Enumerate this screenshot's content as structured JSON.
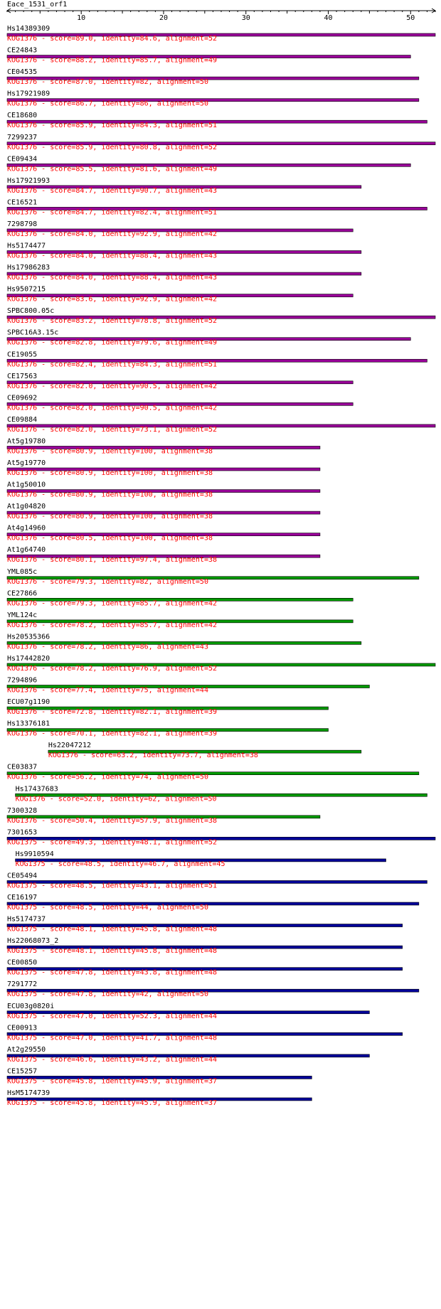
{
  "query": "Eace_1531_orf1",
  "axis": {
    "min": 1,
    "max": 53,
    "ticks": [
      10,
      20,
      30,
      40,
      50
    ]
  },
  "colors": {
    "KOG1376": "#990099",
    "KOG1376_low": "#009900",
    "KOG1375": "#000099",
    "info": "#ff0000",
    "axis": "#000000"
  },
  "hits": [
    {
      "name": "Hs14389309",
      "start": 1,
      "end": 53,
      "color": "#990099",
      "info": "KOG1376 - score=89.0, identity=84.6, alignment=52"
    },
    {
      "name": "CE24843",
      "start": 1,
      "end": 50,
      "color": "#990099",
      "info": "KOG1376 - score=88.2, identity=85.7, alignment=49"
    },
    {
      "name": "CE04535",
      "start": 1,
      "end": 51,
      "color": "#990099",
      "info": "KOG1376 - score=87.0, identity=82, alignment=50"
    },
    {
      "name": "Hs17921989",
      "start": 1,
      "end": 51,
      "color": "#990099",
      "info": "KOG1376 - score=86.7, identity=86, alignment=50"
    },
    {
      "name": "CE18680",
      "start": 1,
      "end": 52,
      "color": "#990099",
      "info": "KOG1376 - score=85.9, identity=84.3, alignment=51"
    },
    {
      "name": "7299237",
      "start": 1,
      "end": 53,
      "color": "#990099",
      "info": "KOG1376 - score=85.9, identity=80.8, alignment=52"
    },
    {
      "name": "CE09434",
      "start": 1,
      "end": 50,
      "color": "#990099",
      "info": "KOG1376 - score=85.5, identity=81.6, alignment=49"
    },
    {
      "name": "Hs17921993",
      "start": 1,
      "end": 44,
      "color": "#990099",
      "info": "KOG1376 - score=84.7, identity=90.7, alignment=43"
    },
    {
      "name": "CE16521",
      "start": 1,
      "end": 52,
      "color": "#990099",
      "info": "KOG1376 - score=84.7, identity=82.4, alignment=51"
    },
    {
      "name": "7298798",
      "start": 1,
      "end": 43,
      "color": "#990099",
      "info": "KOG1376 - score=84.0, identity=92.9, alignment=42"
    },
    {
      "name": "Hs5174477",
      "start": 1,
      "end": 44,
      "color": "#990099",
      "info": "KOG1376 - score=84.0, identity=88.4, alignment=43"
    },
    {
      "name": "Hs17986283",
      "start": 1,
      "end": 44,
      "color": "#990099",
      "info": "KOG1376 - score=84.0, identity=88.4, alignment=43"
    },
    {
      "name": "Hs9507215",
      "start": 1,
      "end": 43,
      "color": "#990099",
      "info": "KOG1376 - score=83.6, identity=92.9, alignment=42"
    },
    {
      "name": "SPBC800.05c",
      "start": 1,
      "end": 53,
      "color": "#990099",
      "info": "KOG1376 - score=83.2, identity=78.8, alignment=52"
    },
    {
      "name": "SPBC16A3.15c",
      "start": 1,
      "end": 50,
      "color": "#990099",
      "info": "KOG1376 - score=82.8, identity=79.6, alignment=49"
    },
    {
      "name": "CE19055",
      "start": 1,
      "end": 52,
      "color": "#990099",
      "info": "KOG1376 - score=82.4, identity=84.3, alignment=51"
    },
    {
      "name": "CE17563",
      "start": 1,
      "end": 43,
      "color": "#990099",
      "info": "KOG1376 - score=82.0, identity=90.5, alignment=42"
    },
    {
      "name": "CE09692",
      "start": 1,
      "end": 43,
      "color": "#990099",
      "info": "KOG1376 - score=82.0, identity=90.5, alignment=42"
    },
    {
      "name": "CE09884",
      "start": 1,
      "end": 53,
      "color": "#990099",
      "info": "KOG1376 - score=82.0, identity=73.1, alignment=52"
    },
    {
      "name": "At5g19780",
      "start": 1,
      "end": 39,
      "color": "#990099",
      "info": "KOG1376 - score=80.9, identity=100, alignment=38"
    },
    {
      "name": "At5g19770",
      "start": 1,
      "end": 39,
      "color": "#990099",
      "info": "KOG1376 - score=80.9, identity=100, alignment=38"
    },
    {
      "name": "At1g50010",
      "start": 1,
      "end": 39,
      "color": "#990099",
      "info": "KOG1376 - score=80.9, identity=100, alignment=38"
    },
    {
      "name": "At1g04820",
      "start": 1,
      "end": 39,
      "color": "#990099",
      "info": "KOG1376 - score=80.9, identity=100, alignment=38"
    },
    {
      "name": "At4g14960",
      "start": 1,
      "end": 39,
      "color": "#990099",
      "info": "KOG1376 - score=80.5, identity=100, alignment=38"
    },
    {
      "name": "At1g64740",
      "start": 1,
      "end": 39,
      "color": "#990099",
      "info": "KOG1376 - score=80.1, identity=97.4, alignment=38"
    },
    {
      "name": "YML085c",
      "start": 1,
      "end": 51,
      "color": "#009900",
      "info": "KOG1376 - score=79.3, identity=82, alignment=50"
    },
    {
      "name": "CE27866",
      "start": 1,
      "end": 43,
      "color": "#009900",
      "info": "KOG1376 - score=79.3, identity=85.7, alignment=42"
    },
    {
      "name": "YML124c",
      "start": 1,
      "end": 43,
      "color": "#009900",
      "info": "KOG1376 - score=78.2, identity=85.7, alignment=42"
    },
    {
      "name": "Hs20535366",
      "start": 1,
      "end": 44,
      "color": "#009900",
      "info": "KOG1376 - score=78.2, identity=86, alignment=43"
    },
    {
      "name": "Hs17442820",
      "start": 1,
      "end": 53,
      "color": "#009900",
      "info": "KOG1376 - score=78.2, identity=76.9, alignment=52"
    },
    {
      "name": "7294896",
      "start": 1,
      "end": 45,
      "color": "#009900",
      "info": "KOG1376 - score=77.4, identity=75, alignment=44"
    },
    {
      "name": "ECU07g1190",
      "start": 1,
      "end": 40,
      "color": "#009900",
      "info": "KOG1376 - score=72.8, identity=82.1, alignment=39"
    },
    {
      "name": "Hs13376181",
      "start": 1,
      "end": 40,
      "color": "#009900",
      "info": "KOG1376 - score=70.1, identity=82.1, alignment=39"
    },
    {
      "name": "Hs22047212",
      "start": 6,
      "end": 44,
      "color": "#009900",
      "info": "KOG1376 - score=63.2, identity=73.7, alignment=38"
    },
    {
      "name": "CE03837",
      "start": 1,
      "end": 51,
      "color": "#009900",
      "info": "KOG1376 - score=56.2, identity=74, alignment=50"
    },
    {
      "name": "Hs17437683",
      "start": 2,
      "end": 52,
      "color": "#009900",
      "info": "KOG1376 - score=52.0, identity=62, alignment=50"
    },
    {
      "name": "7300328",
      "start": 1,
      "end": 39,
      "color": "#009900",
      "info": "KOG1376 - score=50.4, identity=57.9, alignment=38"
    },
    {
      "name": "7301653",
      "start": 1,
      "end": 53,
      "color": "#000099",
      "info": "KOG1375 - score=49.3, identity=48.1, alignment=52"
    },
    {
      "name": "Hs9910594",
      "start": 2,
      "end": 47,
      "color": "#000099",
      "info": "KOG1375 - score=48.5, identity=46.7, alignment=45"
    },
    {
      "name": "CE05494",
      "start": 1,
      "end": 52,
      "color": "#000099",
      "info": "KOG1375 - score=48.5, identity=43.1, alignment=51"
    },
    {
      "name": "CE16197",
      "start": 1,
      "end": 51,
      "color": "#000099",
      "info": "KOG1375 - score=48.5, identity=44, alignment=50"
    },
    {
      "name": "Hs5174737",
      "start": 1,
      "end": 49,
      "color": "#000099",
      "info": "KOG1375 - score=48.1, identity=45.8, alignment=48"
    },
    {
      "name": "Hs22068073_2",
      "start": 1,
      "end": 49,
      "color": "#000099",
      "info": "KOG1375 - score=48.1, identity=45.8, alignment=48"
    },
    {
      "name": "CE00850",
      "start": 1,
      "end": 49,
      "color": "#000099",
      "info": "KOG1375 - score=47.8, identity=43.8, alignment=48"
    },
    {
      "name": "7291772",
      "start": 1,
      "end": 51,
      "color": "#000099",
      "info": "KOG1375 - score=47.8, identity=42, alignment=50"
    },
    {
      "name": "ECU03g0820i",
      "start": 1,
      "end": 45,
      "color": "#000099",
      "info": "KOG1375 - score=47.0, identity=52.3, alignment=44"
    },
    {
      "name": "CE00913",
      "start": 1,
      "end": 49,
      "color": "#000099",
      "info": "KOG1375 - score=47.0, identity=41.7, alignment=48"
    },
    {
      "name": "At2g29550",
      "start": 1,
      "end": 45,
      "color": "#000099",
      "info": "KOG1375 - score=46.6, identity=43.2, alignment=44"
    },
    {
      "name": "CE15257",
      "start": 1,
      "end": 38,
      "color": "#000099",
      "info": "KOG1375 - score=45.8, identity=45.9, alignment=37"
    },
    {
      "name": "HsM5174739",
      "start": 1,
      "end": 38,
      "color": "#000099",
      "info": "KOG1375 - score=45.8, identity=45.9, alignment=37"
    }
  ]
}
